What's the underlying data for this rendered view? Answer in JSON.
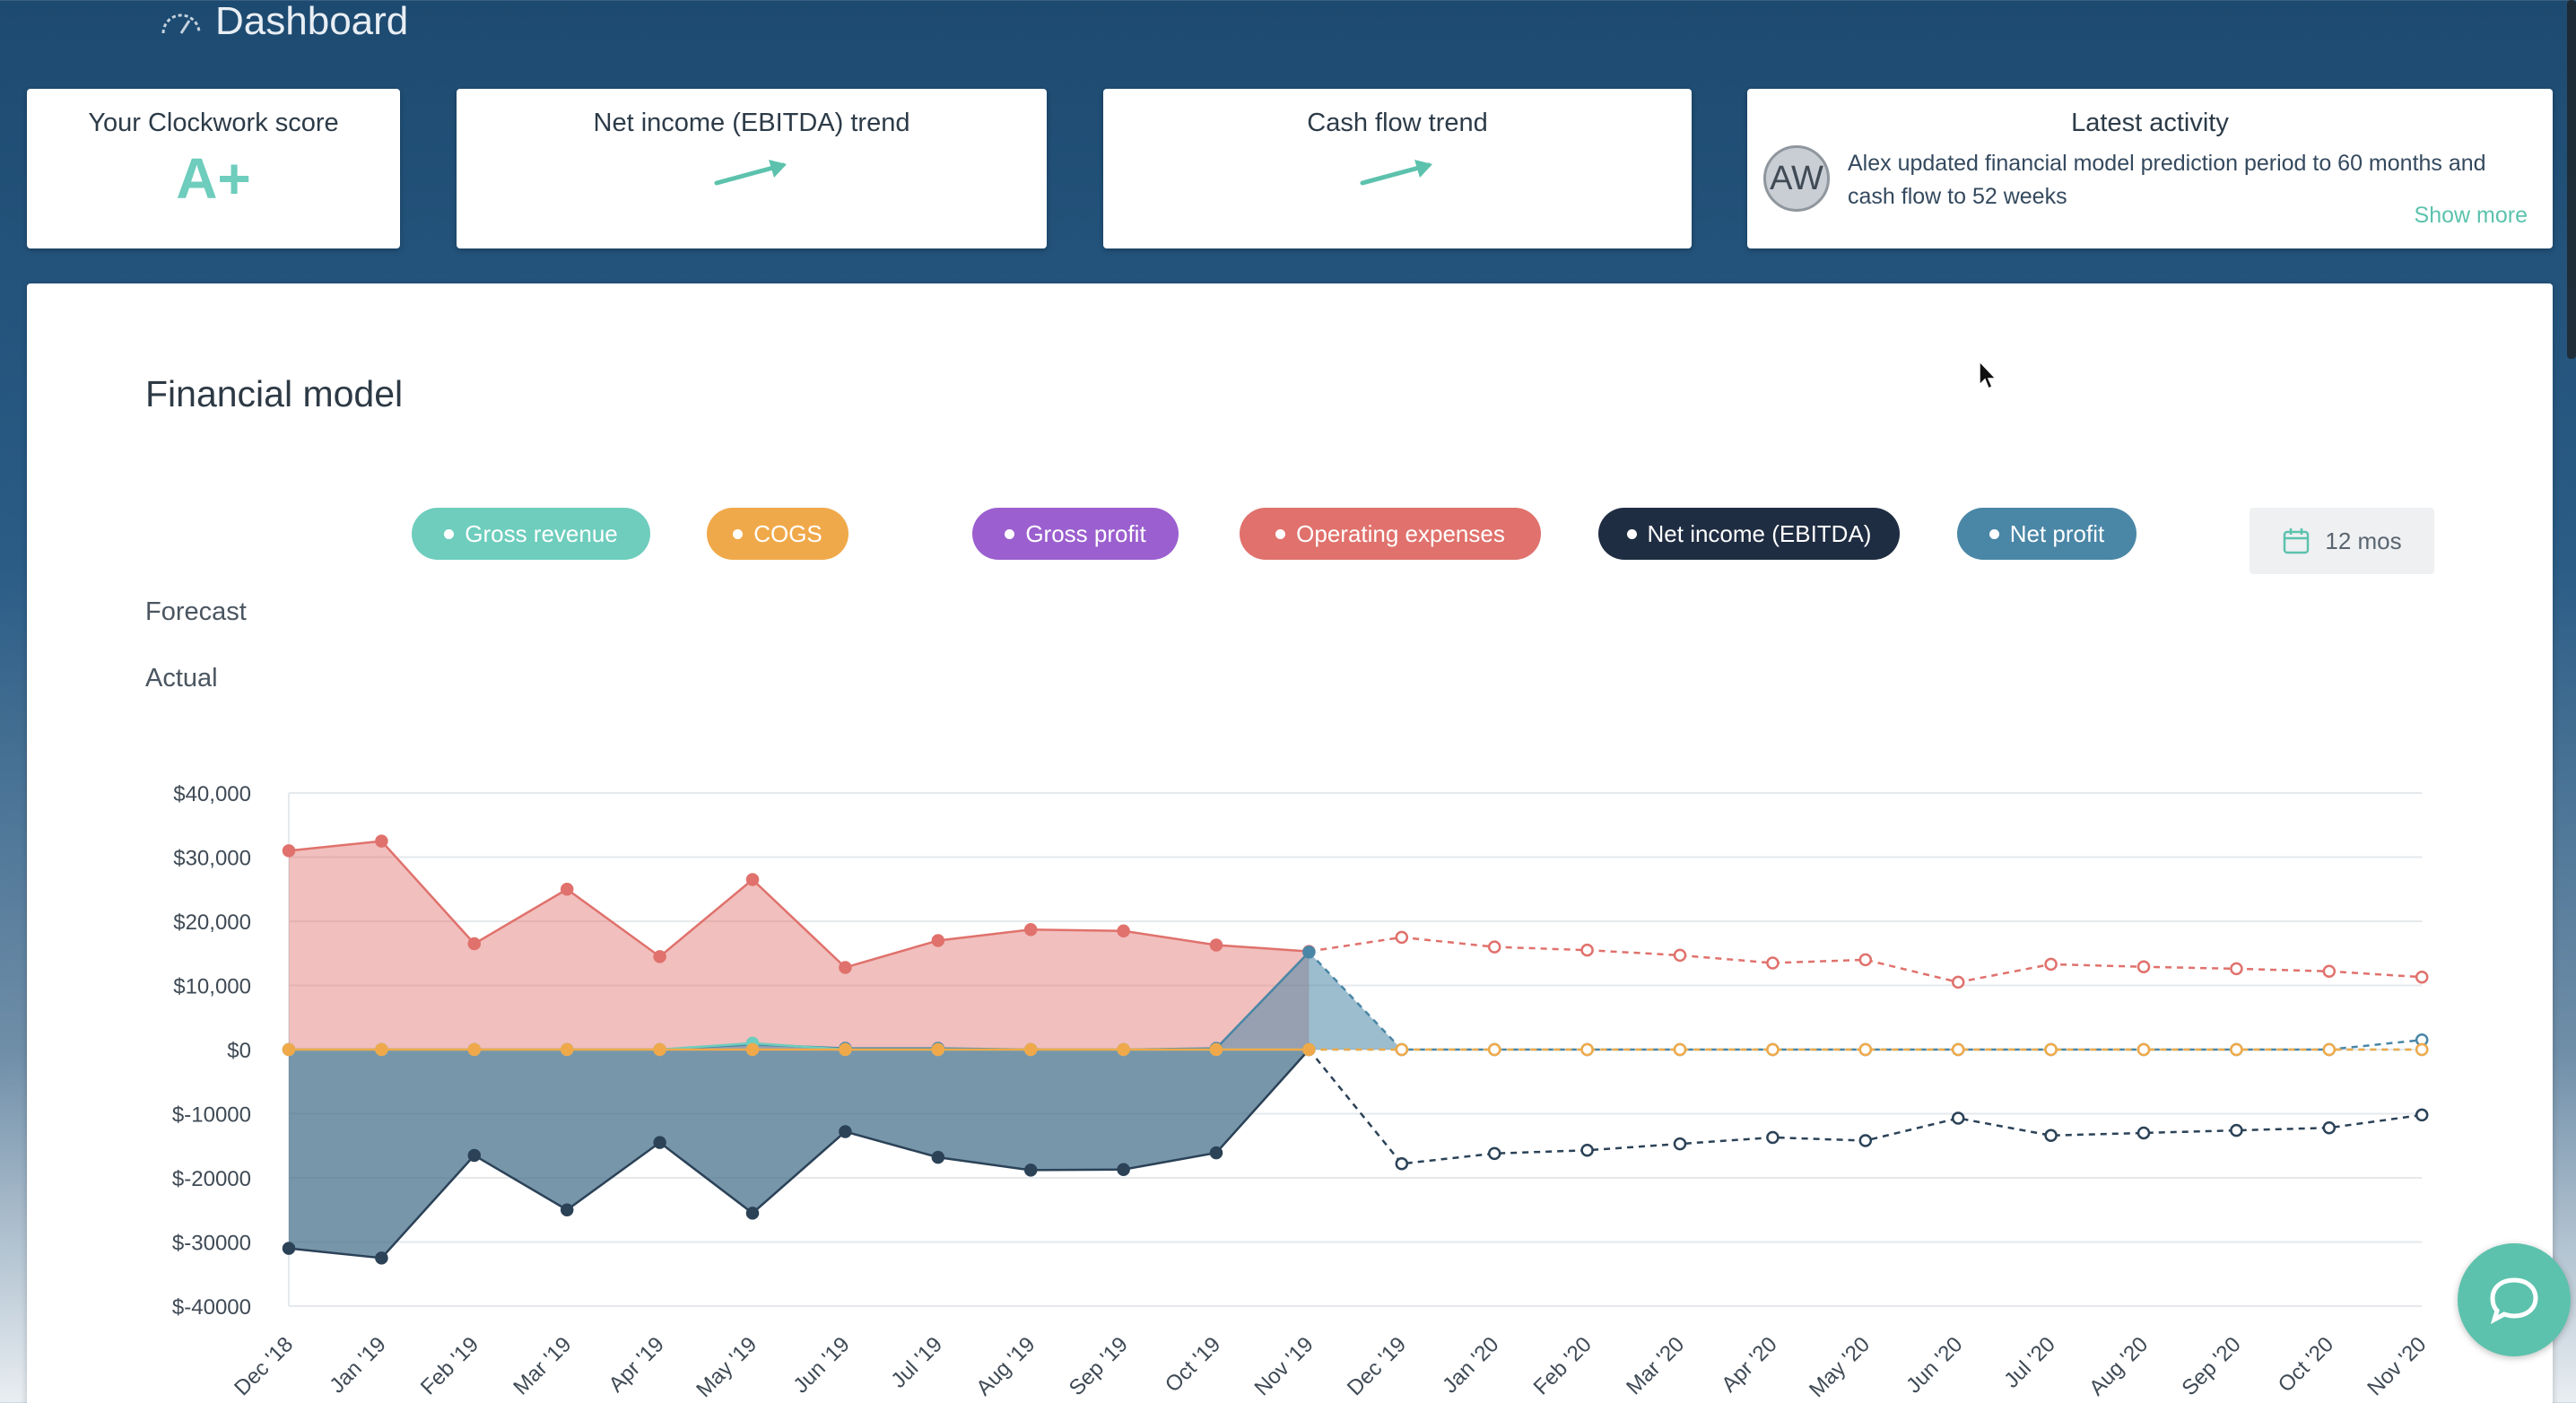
{
  "header": {
    "title": "Dashboard",
    "icon": "gauge-icon"
  },
  "cards": {
    "score": {
      "title": "Your Clockwork score",
      "grade": "A+"
    },
    "net_income": {
      "title": "Net income (EBITDA) trend",
      "trend": "up"
    },
    "cash_flow": {
      "title": "Cash flow trend",
      "trend": "up"
    },
    "activity": {
      "title": "Latest activity",
      "avatar_initials": "AW",
      "text": "Alex updated financial model prediction period to 60 months and cash flow to 52 weeks",
      "show_more": "Show more"
    }
  },
  "panel": {
    "title": "Financial model",
    "period_label": "12 mos",
    "forecast_label": "Forecast",
    "actual_label": "Actual"
  },
  "legend": [
    {
      "label": "Gross revenue",
      "color": "#6ecdbd"
    },
    {
      "label": "COGS",
      "color": "#f0a94a"
    },
    {
      "label": "Gross profit",
      "color": "#9b5fcf"
    },
    {
      "label": "Operating expenses",
      "color": "#e0716c"
    },
    {
      "label": "Net income (EBITDA)",
      "color": "#1f2d42"
    },
    {
      "label": "Net profit",
      "color": "#4a86a6"
    }
  ],
  "chart_data": {
    "type": "area",
    "categories": [
      "Dec '18",
      "Jan '19",
      "Feb '19",
      "Mar '19",
      "Apr '19",
      "May '19",
      "Jun '19",
      "Jul '19",
      "Aug '19",
      "Sep '19",
      "Oct '19",
      "Nov '19",
      "Dec '19",
      "Jan '20",
      "Feb '20",
      "Mar '20",
      "Apr '20",
      "May '20",
      "Jun '20",
      "Jul '20",
      "Aug '20",
      "Sep '20",
      "Oct '20",
      "Nov '20"
    ],
    "y_ticks": [
      "$40,000",
      "$30,000",
      "$20,000",
      "$10,000",
      "$0",
      "$-10000",
      "$-20000",
      "$-30000",
      "$-40000"
    ],
    "ylim": [
      -40000,
      40000
    ],
    "actual_range": [
      0,
      11
    ],
    "forecast_range": [
      12,
      23
    ],
    "series": [
      {
        "name": "Operating expenses",
        "color": "#e0716c",
        "values": [
          31000,
          32500,
          16500,
          25000,
          14500,
          26500,
          12800,
          17000,
          18700,
          18500,
          16300,
          15300,
          17500,
          16000,
          15500,
          14700,
          13500,
          14000,
          10500,
          13300,
          12900,
          12600,
          12200,
          11300
        ]
      },
      {
        "name": "Net income (EBITDA)",
        "color": "#2b4257",
        "values": [
          -31000,
          -32500,
          -16500,
          -25000,
          -14500,
          -25500,
          -12800,
          -16800,
          -18800,
          -18700,
          -16100,
          0,
          -17800,
          -16200,
          -15700,
          -14700,
          -13700,
          -14200,
          -10700,
          -13400,
          -13000,
          -12600,
          -12200,
          -10200
        ]
      },
      {
        "name": "Net profit",
        "color": "#4a86a6",
        "values": [
          0,
          0,
          0,
          0,
          0,
          800,
          200,
          200,
          0,
          0,
          200,
          15200,
          0,
          0,
          0,
          0,
          0,
          0,
          0,
          0,
          0,
          0,
          0,
          1500
        ]
      },
      {
        "name": "Gross revenue",
        "color": "#6ecdbd",
        "values": [
          0,
          0,
          0,
          0,
          0,
          1000,
          0,
          0,
          0,
          0,
          0,
          0,
          0,
          0,
          0,
          0,
          0,
          0,
          0,
          0,
          0,
          0,
          0,
          0
        ]
      },
      {
        "name": "COGS",
        "color": "#f0a94a",
        "values": [
          0,
          0,
          0,
          0,
          0,
          0,
          0,
          0,
          0,
          0,
          0,
          0,
          0,
          0,
          0,
          0,
          0,
          0,
          0,
          0,
          0,
          0,
          0,
          0
        ]
      }
    ]
  }
}
